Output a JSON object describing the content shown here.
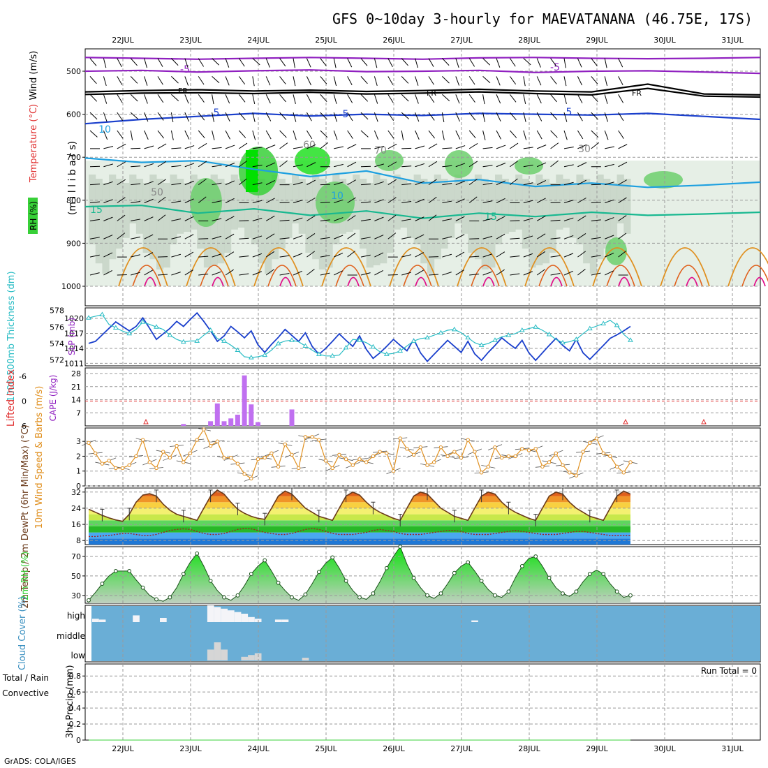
{
  "title": "GFS 0~10day 3-hourly for MAEVATANANA (46.75E, 17S)",
  "credit": "GrADS: COLA/IGES",
  "days": [
    "22JUL",
    "23JUL",
    "24JUL",
    "25JUL",
    "26JUL",
    "27JUL",
    "28JUL",
    "29JUL",
    "30JUL",
    "31JUL"
  ],
  "colors": {
    "purple": "#9020c0",
    "black": "#000000",
    "blue": "#1a3fcc",
    "lightblue": "#1ea0e0",
    "teal": "#18b890",
    "orange": "#e09020",
    "magenta": "#e0108a",
    "cyan": "#28bcc4",
    "rh_green": "#38d038",
    "rh_gray": "#b8c8b8",
    "cloud_blue": "#6aaed6",
    "cape": "#c070f0",
    "red": "#e03030"
  },
  "chart_data": [
    {
      "type": "contour",
      "name": "upper-air",
      "ylabel": "(m i l l i b a r s)",
      "side_labels": [
        "Wind (m/s)",
        "Temperature (°C)",
        "RH (%)"
      ],
      "pressure_ticks": [
        500,
        600,
        700,
        800,
        900,
        1000
      ],
      "contour_labels": [
        "-5",
        "FR",
        "5",
        "10",
        "15",
        "30",
        "50",
        "60",
        "70"
      ],
      "isotherms": [
        {
          "label": "-5",
          "color": "purple",
          "p": [
            468,
            470,
            472,
            470,
            468,
            470,
            472,
            469,
            468,
            470,
            471,
            470,
            468
          ]
        },
        {
          "label": "-5",
          "color": "purple",
          "p": [
            500,
            498,
            502,
            499,
            497,
            501,
            500,
            498,
            503,
            500,
            499,
            502,
            505
          ]
        },
        {
          "label": "FR",
          "color": "black",
          "p": [
            548,
            545,
            543,
            546,
            544,
            547,
            545,
            542,
            546,
            548,
            530,
            553,
            555
          ]
        },
        {
          "label": "FR",
          "color": "black",
          "p": [
            554,
            551,
            550,
            552,
            549,
            553,
            551,
            548,
            552,
            555,
            540,
            558,
            560
          ]
        },
        {
          "label": "5",
          "color": "blue",
          "p": [
            622,
            612,
            605,
            598,
            604,
            600,
            603,
            598,
            600,
            602,
            598,
            605,
            612
          ]
        },
        {
          "label": "10",
          "color": "lightblue",
          "p": [
            702,
            712,
            708,
            728,
            745,
            732,
            760,
            752,
            768,
            760,
            770,
            765,
            758
          ]
        },
        {
          "label": "15",
          "color": "teal",
          "p": [
            815,
            812,
            830,
            820,
            835,
            825,
            842,
            830,
            838,
            828,
            835,
            832,
            828
          ]
        }
      ],
      "days_index": [
        0,
        8,
        16,
        24,
        32,
        40,
        48,
        56,
        64,
        72,
        80
      ]
    },
    {
      "type": "line",
      "name": "thickness-slp",
      "ylabel_left": "1000-500mb Thickness (dm)",
      "ylabel_right": "SLP (mb)",
      "left_ticks": [
        572,
        574,
        576,
        578
      ],
      "right_ticks": [
        1011,
        1014,
        1017,
        1020
      ],
      "ylim_left": [
        571.3,
        578.3
      ],
      "ylim_right": [
        1010.5,
        1022.1
      ],
      "series": [
        {
          "name": "SLP (mb)",
          "color": "blue",
          "axis": "right",
          "values": [
            1015.0,
            1015.4,
            1016.7,
            1018.0,
            1019.3,
            1018.4,
            1017.5,
            1018.4,
            1020.1,
            1018.0,
            1015.8,
            1016.9,
            1018.0,
            1019.4,
            1018.4,
            1019.8,
            1021.1,
            1019.4,
            1017.5,
            1015.4,
            1016.5,
            1018.4,
            1017.3,
            1016.1,
            1017.5,
            1014.7,
            1013.2,
            1014.8,
            1016.2,
            1017.8,
            1016.6,
            1015.4,
            1017.1,
            1014.4,
            1012.8,
            1014.0,
            1015.4,
            1016.9,
            1015.6,
            1014.4,
            1016.5,
            1013.8,
            1012.0,
            1013.1,
            1014.4,
            1015.8,
            1014.6,
            1013.5,
            1015.8,
            1013.1,
            1011.4,
            1012.8,
            1014.2,
            1015.6,
            1014.4,
            1013.2,
            1015.4,
            1012.9,
            1011.6,
            1013.2,
            1014.6,
            1016.1,
            1015.0,
            1014.0,
            1015.6,
            1013.1,
            1011.6,
            1013.1,
            1014.6,
            1016.0,
            1014.6,
            1013.5,
            1015.8,
            1013.1,
            1011.8,
            1013.2,
            1014.6,
            1016.0,
            1016.7,
            1017.5,
            1018.4
          ]
        },
        {
          "name": "1000-500mb Thickness (dm)",
          "color": "cyan",
          "axis": "left",
          "values": [
            577.1,
            577.3,
            577.5,
            576.3,
            575.9,
            575.5,
            575.2,
            575.7,
            576.6,
            576.3,
            576.0,
            575.7,
            575.0,
            574.5,
            574.2,
            574.3,
            574.3,
            575.0,
            575.6,
            574.6,
            574.3,
            573.8,
            573.2,
            572.4,
            572.3,
            572.4,
            572.6,
            573.2,
            574.0,
            574.3,
            574.4,
            574.2,
            573.7,
            573.2,
            572.7,
            572.5,
            572.5,
            572.6,
            573.5,
            574.5,
            574.4,
            574.1,
            573.6,
            573.0,
            572.7,
            572.8,
            573.1,
            573.7,
            574.3,
            574.6,
            574.7,
            575.0,
            575.3,
            575.6,
            575.7,
            575.3,
            574.7,
            574.1,
            573.8,
            574.0,
            574.4,
            574.8,
            575.0,
            575.2,
            575.6,
            575.8,
            576.0,
            575.6,
            575.1,
            574.5,
            574.1,
            574.2,
            574.5,
            575.2,
            575.8,
            576.1,
            576.4,
            576.8,
            576.2,
            575.1,
            574.4
          ]
        }
      ]
    },
    {
      "type": "bar",
      "name": "cape-li",
      "ylabel_left": "Lifted Index",
      "ylabel_right": "CAPE (J/kg)",
      "cape_ticks": [
        7,
        14,
        21,
        28
      ],
      "li_ticks": [
        6,
        0,
        -6
      ],
      "li_tick_labels": [
        "6",
        "0",
        "-6"
      ],
      "ylim_cape": [
        0,
        31
      ],
      "ylim_li": [
        6,
        -8
      ],
      "li_reference": 0,
      "cape_values": [
        0,
        0,
        0,
        0,
        0,
        0,
        0,
        0,
        0,
        0,
        0,
        0,
        0,
        0,
        0,
        0,
        0,
        0,
        0,
        0,
        0,
        0,
        0,
        0,
        0,
        0,
        0,
        0,
        0,
        0,
        0,
        0,
        0,
        0,
        0,
        0,
        0,
        0,
        0,
        0,
        0,
        0,
        0,
        0,
        0,
        0,
        0,
        0,
        0,
        0,
        0,
        0,
        0,
        0,
        0,
        0,
        0,
        0,
        0,
        0,
        0,
        0,
        0,
        0,
        0,
        0,
        0,
        0,
        0,
        0,
        0,
        0,
        0,
        0,
        0,
        0,
        0,
        0,
        0,
        0,
        0
      ],
      "cape_bars": [
        {
          "i": 14,
          "v": 1.0
        },
        {
          "i": 18,
          "v": 2.5
        },
        {
          "i": 19,
          "v": 12.0
        },
        {
          "i": 20,
          "v": 2.5
        },
        {
          "i": 21,
          "v": 4.0
        },
        {
          "i": 22,
          "v": 6.0
        },
        {
          "i": 23,
          "v": 27.0
        },
        {
          "i": 24,
          "v": 11.5
        },
        {
          "i": 25,
          "v": 2.0
        },
        {
          "i": 30,
          "v": 8.8
        }
      ]
    },
    {
      "type": "line",
      "name": "wind10m",
      "ylabel": "10m Wind Speed & Barbs (m/s)",
      "ticks": [
        0,
        1,
        2,
        3
      ],
      "ylim": [
        0,
        3.9
      ],
      "series": [
        {
          "name": "Speed",
          "color": "orange",
          "values": [
            2.9,
            2.2,
            1.5,
            1.7,
            1.2,
            1.2,
            1.4,
            2.0,
            3.1,
            1.6,
            1.2,
            2.3,
            1.9,
            2.7,
            1.6,
            2.2,
            3.1,
            3.8,
            2.7,
            3.0,
            1.9,
            1.9,
            1.5,
            0.8,
            0.5,
            1.8,
            1.9,
            2.2,
            1.3,
            2.8,
            2.1,
            1.2,
            3.3,
            3.3,
            3.1,
            1.7,
            1.2,
            2.1,
            1.8,
            1.4,
            1.8,
            1.6,
            2.0,
            2.3,
            2.2,
            1.0,
            3.2,
            2.5,
            2.1,
            2.6,
            1.4,
            1.6,
            2.6,
            2.0,
            2.3,
            1.9,
            3.1,
            2.3,
            0.9,
            1.3,
            2.6,
            1.9,
            2.0,
            2.0,
            2.5,
            2.4,
            2.5,
            1.3,
            1.6,
            2.2,
            1.4,
            0.9,
            0.7,
            2.3,
            2.9,
            3.2,
            2.2,
            2.0,
            1.3,
            0.9,
            1.6
          ]
        }
      ]
    },
    {
      "type": "area",
      "name": "temp2m",
      "ylabel": "2m Temp / 2m DewPt (6hr Min/Max) (°C)",
      "ticks": [
        8,
        16,
        24,
        32
      ],
      "ylim": [
        6,
        34
      ],
      "series": [
        {
          "name": "2m Temp",
          "color": "#6a3a1a",
          "values": [
            23.5,
            22.0,
            20.5,
            19.2,
            18.2,
            17.5,
            21.0,
            27.0,
            30.5,
            31.2,
            30.0,
            26.0,
            23.0,
            21.0,
            20.0,
            19.0,
            18.0,
            24.0,
            30.0,
            33.0,
            31.0,
            27.0,
            23.5,
            21.5,
            20.0,
            19.0,
            18.5,
            24.0,
            30.0,
            32.5,
            31.0,
            27.5,
            24.0,
            22.0,
            20.0,
            19.0,
            18.0,
            24.0,
            30.0,
            32.0,
            30.5,
            27.0,
            24.0,
            22.0,
            20.5,
            19.0,
            18.0,
            24.0,
            30.0,
            32.0,
            31.0,
            27.5,
            24.0,
            22.0,
            20.0,
            19.0,
            18.0,
            24.0,
            30.0,
            32.0,
            31.0,
            27.0,
            24.0,
            22.0,
            20.5,
            19.0,
            18.0,
            24.0,
            30.0,
            32.0,
            31.0,
            27.0,
            24.0,
            22.0,
            20.0,
            19.0,
            18.0,
            24.0,
            30.0,
            32.5,
            31.0
          ]
        },
        {
          "name": "2m DewPt",
          "color": "#a02020",
          "values": [
            10.0,
            10.0,
            10.3,
            10.5,
            11.0,
            11.5,
            11.5,
            11.0,
            10.5,
            10.5,
            11.0,
            12.0,
            13.0,
            13.5,
            13.8,
            13.5,
            12.5,
            11.5,
            11.0,
            11.0,
            11.5,
            12.5,
            13.5,
            14.0,
            13.8,
            13.0,
            12.0,
            11.5,
            11.0,
            11.0,
            11.5,
            12.5,
            13.5,
            14.0,
            13.5,
            12.5,
            11.5,
            11.0,
            11.0,
            11.0,
            11.5,
            12.0,
            13.0,
            13.5,
            13.0,
            12.5,
            11.5,
            11.0,
            11.0,
            11.0,
            11.5,
            12.0,
            12.5,
            13.0,
            13.0,
            12.5,
            11.5,
            11.0,
            11.0,
            11.0,
            11.5,
            12.0,
            12.5,
            13.0,
            12.5,
            12.0,
            11.5,
            11.0,
            11.0,
            11.0,
            11.5,
            12.0,
            12.5,
            12.5,
            12.0,
            11.5,
            11.0,
            10.5,
            10.5,
            10.5,
            10.5
          ]
        }
      ],
      "bands": [
        {
          "from": 6,
          "to": 9,
          "color": "#1f78d6"
        },
        {
          "from": 9,
          "to": 12,
          "color": "#4aa8f0"
        },
        {
          "from": 12,
          "to": 15,
          "color": "#28b828"
        },
        {
          "from": 15,
          "to": 18,
          "color": "#5ed65e"
        },
        {
          "from": 18,
          "to": 21,
          "color": "#c8e84a"
        },
        {
          "from": 21,
          "to": 24,
          "color": "#f4f070"
        },
        {
          "from": 24,
          "to": 27,
          "color": "#f8d040"
        },
        {
          "from": 27,
          "to": 30,
          "color": "#f09428"
        },
        {
          "from": 30,
          "to": 34,
          "color": "#e0601c"
        }
      ]
    },
    {
      "type": "area",
      "name": "rh2m",
      "ylabel": "2m RH (%)",
      "ticks": [
        30,
        50,
        70
      ],
      "ylim": [
        22,
        80
      ],
      "series": [
        {
          "name": "2m RH",
          "color": "#28b828",
          "values": [
            25,
            33,
            42,
            50,
            55,
            55,
            55,
            46,
            38,
            30,
            26,
            24,
            28,
            38,
            52,
            64,
            73,
            60,
            45,
            35,
            28,
            25,
            30,
            40,
            52,
            60,
            66,
            55,
            43,
            35,
            28,
            25,
            31,
            42,
            54,
            63,
            69,
            58,
            45,
            35,
            28,
            26,
            32,
            44,
            58,
            70,
            80,
            62,
            48,
            38,
            30,
            27,
            32,
            42,
            53,
            60,
            64,
            55,
            45,
            36,
            30,
            28,
            34,
            48,
            60,
            68,
            70,
            60,
            48,
            38,
            32,
            29,
            34,
            44,
            52,
            56,
            52,
            42,
            34,
            28,
            30
          ]
        }
      ]
    },
    {
      "type": "bar",
      "name": "cloud",
      "ylabel": "Cloud Cover (%)",
      "levels": [
        "high",
        "middle",
        "low"
      ],
      "high_gaps": [
        {
          "i": 0,
          "v": 0.2
        },
        {
          "i": 1,
          "v": 0.15
        },
        {
          "i": 6,
          "v": 0.4
        },
        {
          "i": 10,
          "v": 0.25
        },
        {
          "i": 17,
          "v": 1.0
        },
        {
          "i": 18,
          "v": 0.9
        },
        {
          "i": 19,
          "v": 0.8
        },
        {
          "i": 20,
          "v": 0.7
        },
        {
          "i": 21,
          "v": 0.6
        },
        {
          "i": 22,
          "v": 0.5
        },
        {
          "i": 23,
          "v": 0.3
        },
        {
          "i": 24,
          "v": 0.2
        },
        {
          "i": 27,
          "v": 0.15
        },
        {
          "i": 28,
          "v": 0.15
        },
        {
          "i": 56,
          "v": 0.1
        }
      ],
      "low_gaps": [
        {
          "i": 17,
          "v": 0.6
        },
        {
          "i": 18,
          "v": 1.0
        },
        {
          "i": 19,
          "v": 0.6
        },
        {
          "i": 22,
          "v": 0.2
        },
        {
          "i": 23,
          "v": 0.3
        },
        {
          "i": 24,
          "v": 0.4
        },
        {
          "i": 31,
          "v": 0.15
        }
      ]
    },
    {
      "type": "line",
      "name": "precip",
      "ylabel": "3hr Precip (mm)",
      "legend_left": [
        "Total / Rain",
        "Convective"
      ],
      "run_total": "Run Total = 0",
      "ticks": [
        0,
        0.2,
        0.4,
        0.6,
        0.8
      ],
      "tick_labels": [
        "0",
        "0.2",
        "0.4",
        "0.6",
        "0.8"
      ],
      "ylim": [
        0,
        0.95
      ],
      "values": [
        0,
        0,
        0,
        0,
        0,
        0,
        0,
        0,
        0,
        0,
        0,
        0,
        0,
        0,
        0,
        0,
        0,
        0,
        0,
        0,
        0,
        0,
        0,
        0,
        0,
        0,
        0,
        0,
        0,
        0,
        0,
        0,
        0,
        0,
        0,
        0,
        0,
        0,
        0,
        0,
        0,
        0,
        0,
        0,
        0,
        0,
        0,
        0,
        0,
        0,
        0,
        0,
        0,
        0,
        0,
        0,
        0,
        0,
        0,
        0,
        0,
        0,
        0,
        0,
        0,
        0,
        0,
        0,
        0,
        0,
        0,
        0,
        0,
        0,
        0,
        0,
        0,
        0,
        0,
        0,
        0
      ]
    }
  ]
}
